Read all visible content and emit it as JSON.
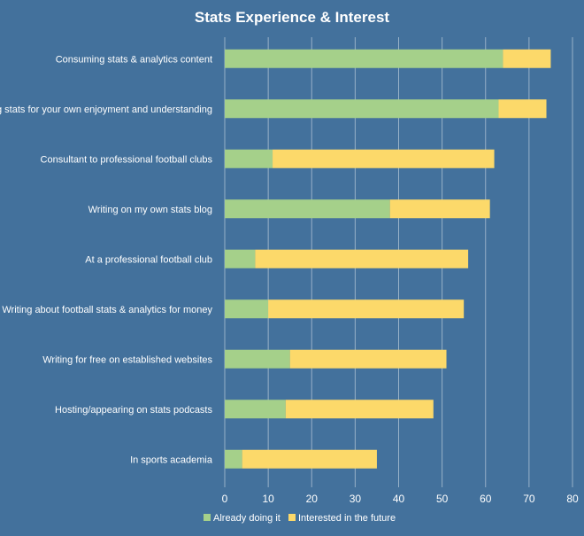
{
  "chart_data": {
    "type": "bar",
    "orientation": "horizontal",
    "stacked": true,
    "title": "Stats Experience & Interest",
    "categories": [
      "Consuming stats & analytics content",
      "Using stats for your own enjoyment and understanding",
      "Consultant to professional football clubs",
      "Writing on my own stats blog",
      "At a professional football club",
      "Writing about football stats & analytics for money",
      "Writing for free on established websites",
      "Hosting/appearing on stats podcasts",
      "In sports academia"
    ],
    "series": [
      {
        "name": "Already doing it",
        "color": "#a5d08a",
        "values": [
          64,
          63,
          11,
          38,
          7,
          10,
          15,
          14,
          4
        ]
      },
      {
        "name": "Interested in the future",
        "color": "#fcd96a",
        "values": [
          11,
          11,
          51,
          23,
          49,
          45,
          36,
          34,
          31
        ]
      }
    ],
    "xlim": [
      0,
      80
    ],
    "xticks": [
      "0",
      "10",
      "20",
      "30",
      "40",
      "50",
      "60",
      "70",
      "80"
    ],
    "grid": true,
    "legend": "bottom",
    "background": "#43719c"
  }
}
